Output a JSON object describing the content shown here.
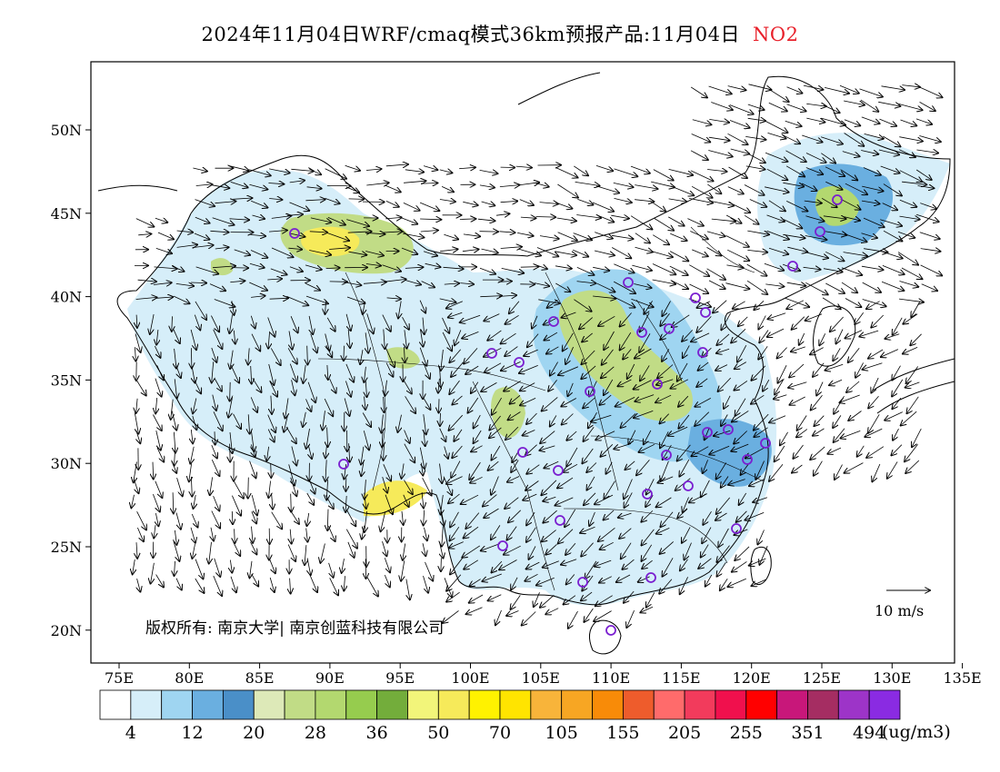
{
  "title": {
    "text": "2024年11月04日WRF/cmaq模式36km预报产品:11月04日",
    "pollutant": "NO2",
    "pollutant_color": "#e8202a"
  },
  "map": {
    "lon_ticks": [
      "75E",
      "80E",
      "85E",
      "90E",
      "95E",
      "100E",
      "105E",
      "110E",
      "115E",
      "120E",
      "125E",
      "130E",
      "135E"
    ],
    "lat_ticks": [
      "50N",
      "45N",
      "40N",
      "35N",
      "30N",
      "25N",
      "20N"
    ],
    "copyright": "版权所有: 南京大学| 南京创蓝科技有限公司",
    "wind_reference": "10 m/s"
  },
  "colorbar": {
    "colors": [
      "#ffffff",
      "#d6eef9",
      "#9fd5f1",
      "#6aafe0",
      "#4a8fc8",
      "#dde9b8",
      "#c1dc86",
      "#b3d86f",
      "#96cc4e",
      "#73ad3b",
      "#f2f57a",
      "#f6ea5a",
      "#fff200",
      "#ffe400",
      "#f8b43a",
      "#f7a623",
      "#f88b08",
      "#ee5c2c",
      "#ff6b6b",
      "#f23b5c",
      "#f0104d",
      "#ff0000",
      "#c8177a",
      "#a52d62",
      "#9d34c8",
      "#8a2be2"
    ],
    "labels": [
      "4",
      "12",
      "20",
      "28",
      "36",
      "50",
      "70",
      "105",
      "155",
      "205",
      "255",
      "351",
      "494"
    ],
    "unit": "(ug/m3)"
  }
}
